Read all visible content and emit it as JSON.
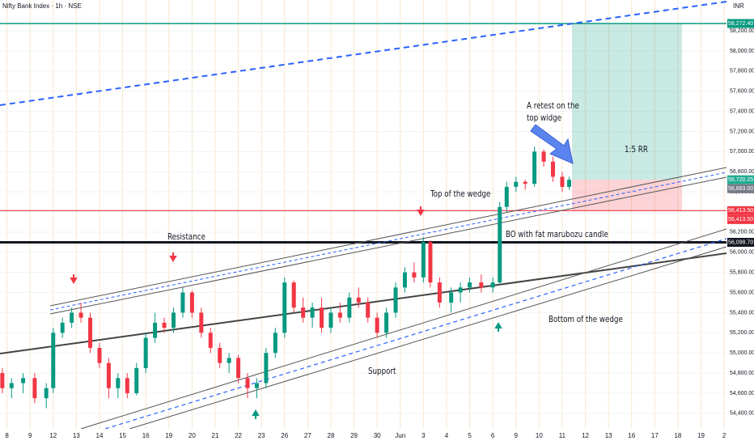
{
  "chart_data": {
    "type": "candlestick",
    "title": "Nifty Bank Index · 1h · NSE",
    "currency": "INR",
    "grid": true,
    "up_color": "#089981",
    "down_color": "#f23645",
    "xlim": [
      -0.3,
      31.1
    ],
    "ylim": [
      54246,
      58506
    ],
    "xticks": [
      {
        "value": 0,
        "label": "8"
      },
      {
        "value": 1,
        "label": "9"
      },
      {
        "value": 2,
        "label": "12"
      },
      {
        "value": 3,
        "label": "13"
      },
      {
        "value": 4,
        "label": "14"
      },
      {
        "value": 5,
        "label": "15"
      },
      {
        "value": 6,
        "label": "16"
      },
      {
        "value": 7,
        "label": "19"
      },
      {
        "value": 8,
        "label": "20"
      },
      {
        "value": 9,
        "label": "21"
      },
      {
        "value": 10,
        "label": "22"
      },
      {
        "value": 11,
        "label": "23"
      },
      {
        "value": 12,
        "label": "26"
      },
      {
        "value": 13,
        "label": "27"
      },
      {
        "value": 14,
        "label": "28"
      },
      {
        "value": 15,
        "label": "29"
      },
      {
        "value": 16,
        "label": "30"
      },
      {
        "value": 17,
        "label": "Jun"
      },
      {
        "value": 18,
        "label": "3"
      },
      {
        "value": 19,
        "label": "4"
      },
      {
        "value": 20,
        "label": "5"
      },
      {
        "value": 21,
        "label": "6"
      },
      {
        "value": 22,
        "label": "9"
      },
      {
        "value": 23,
        "label": "10"
      },
      {
        "value": 24,
        "label": "11"
      },
      {
        "value": 25,
        "label": "12"
      },
      {
        "value": 26,
        "label": "13"
      },
      {
        "value": 27,
        "label": "16"
      },
      {
        "value": 28,
        "label": "17"
      },
      {
        "value": 29,
        "label": "18"
      },
      {
        "value": 30,
        "label": "19"
      },
      {
        "value": 31,
        "label": "2"
      }
    ],
    "yticks": [
      {
        "value": 54400,
        "label": "54,400.00"
      },
      {
        "value": 54600,
        "label": "54,600.00"
      },
      {
        "value": 54800,
        "label": "54,800.00"
      },
      {
        "value": 55000,
        "label": "55,000.00"
      },
      {
        "value": 55200,
        "label": "55,200.00"
      },
      {
        "value": 55400,
        "label": "55,400.00"
      },
      {
        "value": 55600,
        "label": "55,600.00"
      },
      {
        "value": 55800,
        "label": "55,800.00"
      },
      {
        "value": 56000,
        "label": "56,000.00"
      },
      {
        "value": 56200,
        "label": "56,200.00"
      },
      {
        "value": 56400,
        "label": "56,400.00"
      },
      {
        "value": 56600,
        "label": "56,600.00"
      },
      {
        "value": 56800,
        "label": "56,800.00"
      },
      {
        "value": 57000,
        "label": "57,000.00"
      },
      {
        "value": 57200,
        "label": "57,200.00"
      },
      {
        "value": 57400,
        "label": "57,400.00"
      },
      {
        "value": 57600,
        "label": "57,600.00"
      },
      {
        "value": 57800,
        "label": "57,800.00"
      },
      {
        "value": 58000,
        "label": "58,000.00"
      },
      {
        "value": 58200,
        "label": "58,200.00"
      }
    ],
    "x": [
      -0.2,
      0.2,
      0.7,
      1.2,
      1.7,
      2.0,
      2.4,
      2.8,
      3.2,
      3.6,
      4.0,
      4.4,
      4.8,
      5.2,
      5.6,
      6.0,
      6.4,
      6.8,
      7.2,
      7.6,
      8.0,
      8.4,
      8.8,
      9.2,
      9.6,
      10.0,
      10.4,
      10.8,
      11.2,
      11.6,
      12.0,
      12.4,
      12.8,
      13.2,
      13.6,
      14.0,
      14.4,
      14.8,
      15.2,
      15.6,
      16.0,
      16.4,
      16.8,
      17.2,
      17.6,
      18.0,
      18.3,
      18.7,
      19.2,
      19.6,
      20.0,
      20.5,
      21.0,
      21.3,
      21.6,
      22.0,
      22.4,
      22.8,
      23.2,
      23.6,
      24.0,
      24.3
    ],
    "open": [
      54800,
      54650,
      54700,
      54750,
      54550,
      54650,
      55200,
      55300,
      55400,
      55350,
      55050,
      54900,
      54650,
      54750,
      54600,
      54850,
      55150,
      55300,
      55250,
      55400,
      55600,
      55400,
      55200,
      55050,
      54900,
      54950,
      54750,
      54650,
      54700,
      55000,
      55200,
      55700,
      55450,
      55350,
      55450,
      55250,
      55400,
      55350,
      55550,
      55500,
      55350,
      55200,
      55400,
      55650,
      55800,
      55750,
      56100,
      55700,
      55500,
      55600,
      55650,
      55700,
      55650,
      55700,
      56450,
      56650,
      56700,
      56680,
      57000,
      56900,
      56750,
      56650
    ],
    "high": [
      54850,
      54750,
      54800,
      54800,
      54700,
      55250,
      55350,
      55450,
      55500,
      55400,
      55100,
      54950,
      54800,
      54800,
      54900,
      55200,
      55400,
      55350,
      55450,
      55650,
      55620,
      55450,
      55250,
      55100,
      55000,
      54980,
      54800,
      54750,
      55050,
      55250,
      55750,
      55720,
      55550,
      55500,
      55550,
      55450,
      55500,
      55600,
      55650,
      55550,
      55400,
      55450,
      55700,
      55850,
      55900,
      56150,
      56120,
      55750,
      55650,
      55700,
      55750,
      55780,
      55750,
      56500,
      56700,
      56750,
      56720,
      57050,
      57020,
      56950,
      56800,
      56750
    ],
    "low": [
      54600,
      54550,
      54600,
      54500,
      54450,
      54600,
      55150,
      55250,
      55300,
      55000,
      54850,
      54550,
      54550,
      54550,
      54580,
      54800,
      55100,
      55200,
      55200,
      55350,
      55350,
      55150,
      55000,
      54850,
      54800,
      54700,
      54550,
      54550,
      54650,
      54950,
      55150,
      55400,
      55300,
      55250,
      55200,
      55200,
      55300,
      55300,
      55450,
      55300,
      55150,
      55150,
      55350,
      55600,
      55700,
      55700,
      55650,
      55450,
      55400,
      55500,
      55600,
      55600,
      55600,
      55680,
      56400,
      56600,
      56620,
      56650,
      56850,
      56700,
      56600,
      56620
    ],
    "close": [
      54650,
      54700,
      54750,
      54550,
      54650,
      55200,
      55300,
      55400,
      55350,
      55050,
      54900,
      54650,
      54750,
      54600,
      54850,
      55150,
      55300,
      55250,
      55400,
      55600,
      55400,
      55200,
      55050,
      54900,
      54950,
      54750,
      54650,
      54700,
      55000,
      55200,
      55700,
      55450,
      55350,
      55450,
      55250,
      55400,
      55350,
      55550,
      55500,
      55350,
      55200,
      55400,
      55650,
      55800,
      55750,
      56100,
      55700,
      55500,
      55600,
      55650,
      55700,
      55650,
      55700,
      56450,
      56650,
      56700,
      56680,
      57000,
      56900,
      56750,
      56650,
      56720
    ],
    "levels": [
      {
        "value": 58272.4,
        "label": "58,272.40",
        "color": "#089981",
        "line_width": 1.5
      },
      {
        "value": 56720.25,
        "label": "56,720.25",
        "color": "#22ab94",
        "line_width": 0
      },
      {
        "value": 56683,
        "label": "56,683.00",
        "color": "#787b86",
        "line_width": 0
      },
      {
        "value": 56413.5,
        "label": "56,413.50",
        "color": "#f23645",
        "line_width": 1.2
      },
      {
        "value": 56413.5,
        "label": "56,413.50",
        "color": "#f23645",
        "line_width": 0
      },
      {
        "value": 56098.7,
        "label": "56,098.70",
        "color": "#131722",
        "line_width": 3
      }
    ],
    "position": {
      "target": 58272.4,
      "entry": 56720.25,
      "stop": 56413.5,
      "label": "1:5 RR"
    },
    "annotations": [
      "Resistance",
      "Top of the wedge",
      "BO with fat marubozu candle",
      "Support",
      "Bottom of the wedge",
      "A retest on the top widge"
    ]
  }
}
